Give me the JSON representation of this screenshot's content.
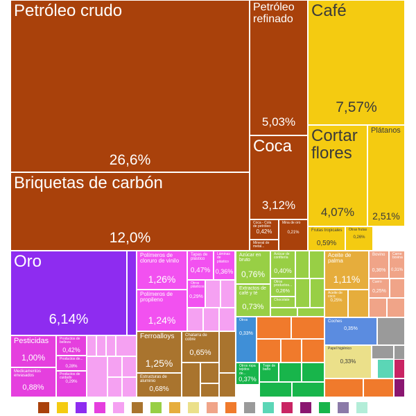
{
  "chart_data": {
    "type": "treemap",
    "title": "",
    "cells": [
      {
        "id": "petroleo-crudo",
        "label": "Petróleo crudo",
        "value": "26,6%",
        "color": "#a9410b",
        "fs": 24,
        "vfs": 21
      },
      {
        "id": "briquetas-de-carbon",
        "label": "Briquetas de carbón",
        "value": "12,0%",
        "color": "#a9410b",
        "fs": 24,
        "vfs": 21
      },
      {
        "id": "petroleo-refinado",
        "label": "Petróleo refinado",
        "value": "5,03%",
        "color": "#a9410b",
        "fs": 16,
        "vfs": 17
      },
      {
        "id": "coca",
        "label": "Coca",
        "value": "3,12%",
        "color": "#a9410b",
        "fs": 24,
        "vfs": 17
      },
      {
        "id": "coca-cola-de-petroleo",
        "label": "Coca - Cola de petróleo",
        "value": "0,42%",
        "color": "#a9410b",
        "fs": 5,
        "vfs": 8
      },
      {
        "id": "mineral-de-metal",
        "label": "Mineral de metal...",
        "value": "",
        "color": "#a9410b",
        "fs": 5,
        "vfs": 8
      },
      {
        "id": "mina-de-otro",
        "label": "Mina de oro",
        "value": "0,21%",
        "color": "#a9410b",
        "fs": 5,
        "vfs": 6
      },
      {
        "id": "cafe",
        "label": "Café",
        "value": "7,57%",
        "color": "#f4cb11",
        "fs": 24,
        "vfs": 21,
        "dark": true
      },
      {
        "id": "cortar-flores",
        "label": "Cortar flores",
        "value": "4,07%",
        "color": "#f4cb11",
        "fs": 24,
        "vfs": 17,
        "dark": true
      },
      {
        "id": "platanos",
        "label": "Plátanos",
        "value": "2,51%",
        "color": "#f4cb11",
        "fs": 11,
        "vfs": 14,
        "dark": true
      },
      {
        "id": "frutas-tropicales",
        "label": "Frutas tropicales",
        "value": "0,59%",
        "color": "#f4cb11",
        "fs": 6,
        "vfs": 10,
        "dark": true
      },
      {
        "id": "otras-frutas",
        "label": "Otras frutas",
        "value": "0,26%",
        "color": "#f4cb11",
        "fs": 5,
        "vfs": 6,
        "dark": true
      },
      {
        "id": "oro",
        "label": "Oro",
        "value": "6,14%",
        "color": "#8e2cf0",
        "fs": 24,
        "vfs": 20
      },
      {
        "id": "polimeros-cloruro-vinilo",
        "label": "Polímeros de cloruro de vinilo",
        "value": "1,26%",
        "color": "#f251f0",
        "fs": 8,
        "vfs": 14
      },
      {
        "id": "polimeros-propileno",
        "label": "Polímeros de propileno",
        "value": "1,24%",
        "color": "#f251f0",
        "fs": 8,
        "vfs": 14
      },
      {
        "id": "tapas-de-plastico",
        "label": "Tapas de plástico",
        "value": "0,47%",
        "color": "#f251f0",
        "fs": 6,
        "vfs": 10
      },
      {
        "id": "laminas-de-plastico",
        "label": "Láminas de plástico",
        "value": "0,36%",
        "color": "#f251f0",
        "fs": 5,
        "vfs": 9
      },
      {
        "id": "otros-plasticos",
        "label": "Otros plásticos",
        "value": "0,29%",
        "color": "#f251f0",
        "fs": 5,
        "vfs": 7
      },
      {
        "id": "pesticidas",
        "label": "Pesticidas",
        "value": "1,00%",
        "color": "#e53fde",
        "fs": 11,
        "vfs": 12
      },
      {
        "id": "medicamentos-envasados",
        "label": "Medicamentos envasados",
        "value": "0,88%",
        "color": "#e53fde",
        "fs": 6,
        "vfs": 11
      },
      {
        "id": "productos-de-belleza",
        "label": "Productos de belleza",
        "value": "0,42%",
        "color": "#e53fde",
        "fs": 5,
        "vfs": 9
      },
      {
        "id": "productos-de-limpieza",
        "label": "Productos de...",
        "value": "0,28%",
        "color": "#e53fde",
        "fs": 5,
        "vfs": 6
      },
      {
        "id": "productos-de-cuidado",
        "label": "Productos de cuidado",
        "value": "0,29%",
        "color": "#e53fde",
        "fs": 5,
        "vfs": 6
      },
      {
        "id": "ferroalloys",
        "label": "Ferroalloys",
        "value": "1,25%",
        "color": "#a9742e",
        "fs": 10,
        "vfs": 14
      },
      {
        "id": "estructuras-aluminio",
        "label": "Estructuras de aluminio",
        "value": "0,68%",
        "color": "#a9742e",
        "fs": 6,
        "vfs": 10
      },
      {
        "id": "chatarra-de-cobre",
        "label": "Chatarra de cobre",
        "value": "0,65%",
        "color": "#a9742e",
        "fs": 6,
        "vfs": 11
      },
      {
        "id": "azucar-en-bruto",
        "label": "Azúcar en bruto",
        "value": "0,76%",
        "color": "#98cf45",
        "fs": 7,
        "vfs": 12
      },
      {
        "id": "extractos-de-cafe-y-te",
        "label": "Extractos de café y té",
        "value": "0,73%",
        "color": "#98cf45",
        "fs": 7,
        "vfs": 11
      },
      {
        "id": "azucar-de-confiteria",
        "label": "Azúcar de confitería",
        "value": "0,40%",
        "color": "#98cf45",
        "fs": 5,
        "vfs": 9
      },
      {
        "id": "otros-productos-alimenticios",
        "label": "Otros productos...",
        "value": "0,26%",
        "color": "#98cf45",
        "fs": 5,
        "vfs": 7
      },
      {
        "id": "chocolate",
        "label": "Chocolate",
        "value": "",
        "color": "#98cf45",
        "fs": 5,
        "vfs": 6
      },
      {
        "id": "aceite-de-palma",
        "label": "Aceite de palma",
        "value": "1,11%",
        "color": "#e6ad3c",
        "fs": 8,
        "vfs": 14
      },
      {
        "id": "aceite-de-coco",
        "label": "Aceite de coco",
        "value": "0,25%",
        "color": "#e6ad3c",
        "fs": 5,
        "vfs": 6
      },
      {
        "id": "bovino",
        "label": "Bovino",
        "value": "0,36%",
        "color": "#f0a488",
        "fs": 6,
        "vfs": 7
      },
      {
        "id": "carne-bovina",
        "label": "Carne bovina",
        "value": "0,31%",
        "color": "#f0a488",
        "fs": 5,
        "vfs": 6
      },
      {
        "id": "cuero",
        "label": "Cuero",
        "value": "0,25%",
        "color": "#f0a488",
        "fs": 5,
        "vfs": 7
      },
      {
        "id": "coches",
        "label": "Coches",
        "value": "0,35%",
        "color": "#5b8ce0",
        "fs": 6,
        "vfs": 7
      },
      {
        "id": "papel-higienico",
        "label": "Papel higiénico",
        "value": "0,33%",
        "color": "#ebe08a",
        "fs": 5,
        "vfs": 8,
        "dark": true
      },
      {
        "id": "otros-maquinaria",
        "label": "Otros",
        "value": "0,33%",
        "color": "#3f8fd7",
        "fs": 5,
        "vfs": 7
      },
      {
        "id": "otros-textiles",
        "label": "Otros ropa tejidos de...",
        "value": "0,37%",
        "color": "#18b54b",
        "fs": 5,
        "vfs": 9
      },
      {
        "id": "ropa-de-punto",
        "label": "Traje de baño",
        "value": "",
        "color": "#18b54b",
        "fs": 5,
        "vfs": 6
      }
    ],
    "legend_colors": [
      "#a9410b",
      "#f4cb11",
      "#8e2cf0",
      "#e53fde",
      "#f5a1f2",
      "#a9742e",
      "#98cf45",
      "#e6ad3c",
      "#ebe08a",
      "#f0a488",
      "#f07a2c",
      "#9a9a9a",
      "#5bd6b6",
      "#c92463",
      "#8a1670",
      "#18b54b",
      "#8b7aa8",
      "#b3edd8"
    ]
  }
}
